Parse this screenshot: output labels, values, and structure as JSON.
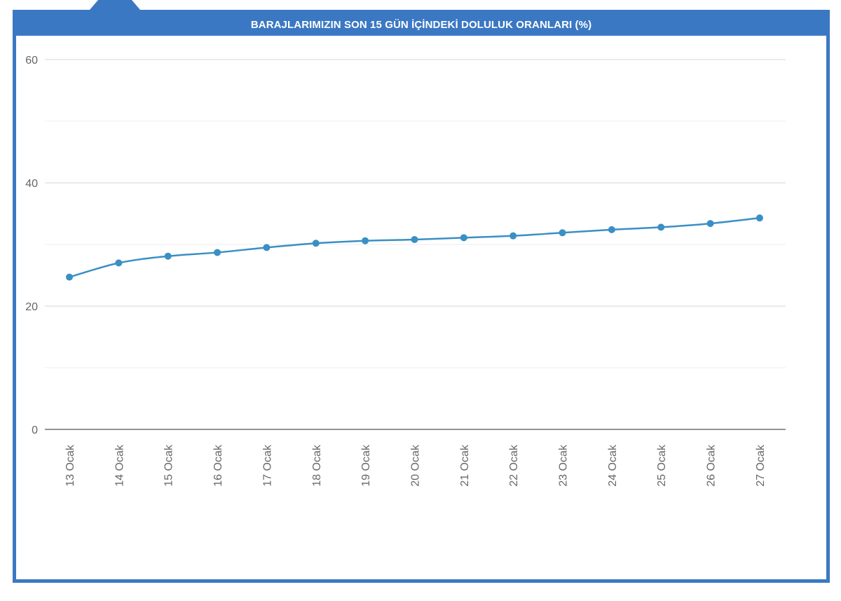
{
  "panel": {
    "title": "BARAJLARIMIZIN SON 15 GÜN İÇİNDEKİ DOLULUK ORANLARI (%)"
  },
  "colors": {
    "frame": "#3b78c3",
    "line": "#3a8fc4",
    "grid": "#e0e0e0",
    "axis": "#555555",
    "tick_text": "#666666"
  },
  "chart_data": {
    "type": "line",
    "title": "BARAJLARIMIZIN SON 15 GÜN İÇİNDEKİ DOLULUK ORANLARI (%)",
    "xlabel": "",
    "ylabel": "",
    "ylim": [
      0,
      60
    ],
    "yticks": [
      0,
      20,
      40,
      60
    ],
    "grid": true,
    "categories": [
      "13 Ocak",
      "14 Ocak",
      "15 Ocak",
      "16 Ocak",
      "17 Ocak",
      "18 Ocak",
      "19 Ocak",
      "20 Ocak",
      "21 Ocak",
      "22 Ocak",
      "23 Ocak",
      "24 Ocak",
      "25 Ocak",
      "26 Ocak",
      "27 Ocak"
    ],
    "values": [
      24.7,
      27.0,
      28.1,
      28.7,
      29.5,
      30.2,
      30.6,
      30.8,
      31.1,
      31.4,
      31.9,
      32.4,
      32.8,
      33.4,
      34.3
    ]
  }
}
